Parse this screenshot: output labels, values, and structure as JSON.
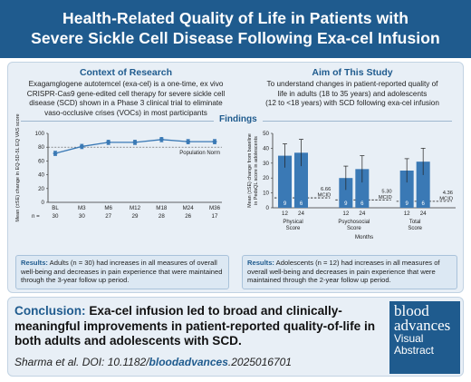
{
  "header": {
    "title_line1": "Health-Related Quality of Life in Patients with",
    "title_line2": "Severe Sickle Cell Disease Following Exa-cel Infusion"
  },
  "context": {
    "title": "Context of Research",
    "line1": "Exagamglogene autotemcel (exa-cel) is a one-time, ex vivo",
    "line2": "CRISPR-Cas9 gene-edited cell therapy for severe sickle cell",
    "line3": "disease (SCD) shown in a Phase 3 clinical trial to eliminate",
    "line4": "vaso-occlusive crises (VOCs) in most participants"
  },
  "aim": {
    "title": "Aim of This Study",
    "line1": "To understand changes in patient-reported quality of",
    "line2": "life in adults (18 to 35 years) and adolescents",
    "line3": "(12 to <18 years) with SCD following exa-cel infusion"
  },
  "findings_label": "Findings",
  "colors": {
    "brand": "#1f5b8e",
    "bar": "#3a79b5",
    "panel": "#e8eff6"
  },
  "chart_data": [
    {
      "type": "line",
      "ylabel": "Mean (±SE) change in EQ-5D-5L EQ VAS score",
      "x": [
        "BL",
        "M3",
        "M6",
        "M12",
        "M18",
        "M24",
        "M36"
      ],
      "n_label": "n =",
      "n": [
        "30",
        "30",
        "27",
        "29",
        "28",
        "26",
        "17"
      ],
      "values": [
        71,
        81,
        87,
        87,
        91,
        88,
        88
      ],
      "ylim": [
        0,
        100
      ],
      "yticks": [
        "0",
        "20",
        "40",
        "60",
        "80",
        "100"
      ],
      "reference_label": "Population Norm",
      "reference_value": 80
    },
    {
      "type": "bar",
      "ylabel_line1": "Mean (±SE) change from baseline",
      "ylabel_line2": "in PedsQL score in adolescents",
      "xlabel": "Months",
      "ylim": [
        0,
        50
      ],
      "yticks": [
        "0",
        "10",
        "20",
        "30",
        "40",
        "50"
      ],
      "groups": [
        {
          "name": "Physical Score",
          "name_line1": "Physical",
          "name_line2": "Score",
          "months": [
            "12",
            "24"
          ],
          "n": [
            "9",
            "6"
          ],
          "values": [
            35,
            37
          ],
          "mcid": "6.66 MCID",
          "mcid_value": 6.66
        },
        {
          "name": "Psychosocial Score",
          "name_line1": "Psychosocial",
          "name_line2": "Score",
          "months": [
            "12",
            "24"
          ],
          "n": [
            "9",
            "6"
          ],
          "values": [
            20,
            26
          ],
          "mcid": "5.30 MCID",
          "mcid_value": 5.3
        },
        {
          "name": "Total Score",
          "name_line1": "Total",
          "name_line2": "Score",
          "months": [
            "12",
            "24"
          ],
          "n": [
            "9",
            "6"
          ],
          "values": [
            25,
            31
          ],
          "mcid": "4.36 MCID",
          "mcid_value": 4.36
        }
      ]
    }
  ],
  "results_adults": {
    "label": "Results:",
    "text": "Adults (n = 30) had increases in all measures of overall well-being and decreases in pain experience that were maintained through the 3-year follow up period."
  },
  "results_adolescents": {
    "label": "Results:",
    "text": "Adolescents (n = 12) had increases in all measures of overall well-being and decreases in pain experience that were maintained through the 2-year follow up period."
  },
  "conclusion": {
    "label": "Conclusion:",
    "text": "Exa-cel infusion led to broad and clinically-meaningful improvements in patient-reported quality-of-life in both adults and adolescents with SCD."
  },
  "citation": {
    "prefix": "Sharma et al. DOI: 10.1182/",
    "doi": "bloodadvances",
    "suffix": ".2025016701"
  },
  "logo": {
    "line1": "blood",
    "line2": "advances",
    "line3": "Visual",
    "line4": "Abstract"
  }
}
